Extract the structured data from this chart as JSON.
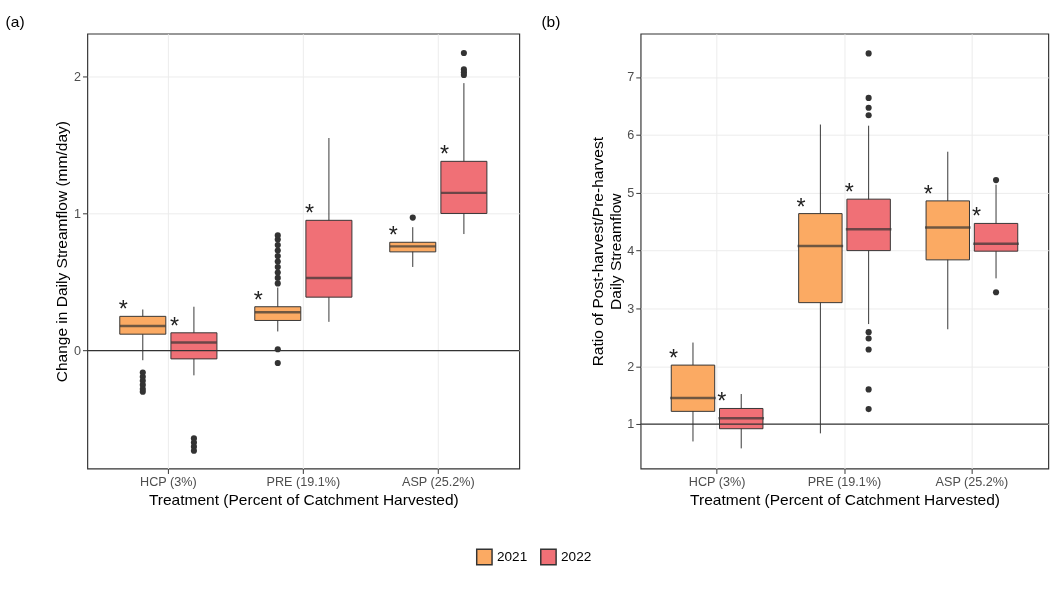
{
  "chart_data": [
    {
      "type": "box",
      "title": "(a)",
      "xlabel": "Treatment (Percent of Catchment Harvested)",
      "ylabel": "Change in Daily Streamflow (mm/day)",
      "categories": [
        "HCP (3%)",
        "PRE (19.1%)",
        "ASP (25.2%)"
      ],
      "ylim": [
        -0.86,
        2.31
      ],
      "yticks": [
        0,
        1,
        2
      ],
      "grid": true,
      "legend": "bottom",
      "series": [
        {
          "name": "2021",
          "color": "#fbaa63",
          "boxes": [
            {
              "low": -0.07,
              "q1": 0.12,
              "median": 0.18,
              "q3": 0.25,
              "high": 0.3,
              "outliers": [
                -0.16,
                -0.19,
                -0.22,
                -0.25,
                -0.28,
                -0.3
              ]
            },
            {
              "low": 0.14,
              "q1": 0.22,
              "median": 0.28,
              "q3": 0.32,
              "high": 0.46,
              "outliers": [
                0.49,
                0.53,
                0.57,
                0.61,
                0.65,
                0.69,
                0.73,
                0.77,
                0.81,
                0.84,
                0.01,
                -0.09
              ]
            },
            {
              "low": 0.61,
              "q1": 0.72,
              "median": 0.76,
              "q3": 0.79,
              "high": 0.9,
              "outliers": [
                0.97
              ]
            }
          ]
        },
        {
          "name": "2022",
          "color": "#f07076",
          "boxes": [
            {
              "low": -0.18,
              "q1": -0.06,
              "median": 0.06,
              "q3": 0.13,
              "high": 0.32,
              "outliers": [
                -0.64,
                -0.67,
                -0.7,
                -0.73
              ]
            },
            {
              "low": 0.21,
              "q1": 0.39,
              "median": 0.53,
              "q3": 0.95,
              "high": 1.55
            },
            {
              "low": 0.85,
              "q1": 1.0,
              "median": 1.15,
              "q3": 1.38,
              "high": 1.95,
              "outliers": [
                2.01,
                2.03,
                2.05,
                2.17
              ]
            }
          ]
        }
      ],
      "ref_lines": [
        {
          "axis": "y",
          "value": 0,
          "color": "#333333"
        }
      ],
      "annotations": [
        {
          "text": "*",
          "x": "HCP (3%)",
          "y": 0.25
        },
        {
          "text": "*",
          "x": "HCP (3%)",
          "y": 0.13
        },
        {
          "text": "*",
          "x": "PRE (19.1%)",
          "y": 0.32
        },
        {
          "text": "*",
          "x": "PRE (19.1%)",
          "y": 0.95
        },
        {
          "text": "*",
          "x": "ASP (25.2%)",
          "y": 0.79
        },
        {
          "text": "*",
          "x": "ASP (25.2%)",
          "y": 1.38
        }
      ]
    },
    {
      "type": "box",
      "title": "(b)",
      "xlabel": "Treatment (Percent of Catchment Harvested)",
      "ylabel": "Ratio of Post-harvest/Pre-harvest\nDaily Streamflow",
      "categories": [
        "HCP (3%)",
        "PRE (19.1%)",
        "ASP (25.2%)"
      ],
      "ylim": [
        0.23,
        7.75
      ],
      "yticks": [
        1,
        2,
        3,
        4,
        5,
        6,
        7
      ],
      "grid": true,
      "series": [
        {
          "name": "2021",
          "color": "#fbaa63",
          "boxes": [
            {
              "low": 0.7,
              "q1": 1.22,
              "median": 1.45,
              "q3": 2.02,
              "high": 2.41
            },
            {
              "low": 0.84,
              "q1": 3.1,
              "median": 4.08,
              "q3": 4.64,
              "high": 6.18
            },
            {
              "low": 2.64,
              "q1": 3.84,
              "median": 4.4,
              "q3": 4.86,
              "high": 5.71
            }
          ]
        },
        {
          "name": "2022",
          "color": "#f07076",
          "boxes": [
            {
              "low": 0.58,
              "q1": 0.92,
              "median": 1.1,
              "q3": 1.27,
              "high": 1.52
            },
            {
              "low": 2.73,
              "q1": 4.0,
              "median": 4.37,
              "q3": 4.89,
              "high": 6.16,
              "outliers": [
                7.41,
                6.64,
                6.47,
                6.34,
                2.59,
                2.48,
                2.29,
                1.6,
                1.26
              ]
            },
            {
              "low": 3.52,
              "q1": 3.99,
              "median": 4.12,
              "q3": 4.47,
              "high": 5.14,
              "outliers": [
                5.22,
                3.28
              ]
            }
          ]
        }
      ],
      "ref_lines": [
        {
          "axis": "y",
          "value": 1,
          "color": "#333333"
        }
      ],
      "annotations": [
        {
          "text": "*",
          "x": "HCP (3%)",
          "y": 2.02
        },
        {
          "text": "*",
          "x": "HCP (3%)",
          "y": 1.27
        },
        {
          "text": "*",
          "x": "PRE (19.1%)",
          "y": 4.64
        },
        {
          "text": "*",
          "x": "PRE (19.1%)",
          "y": 4.89
        },
        {
          "text": "*",
          "x": "ASP (25.2%)",
          "y": 4.86
        },
        {
          "text": "*",
          "x": "ASP (25.2%)",
          "y": 4.47
        }
      ]
    }
  ]
}
